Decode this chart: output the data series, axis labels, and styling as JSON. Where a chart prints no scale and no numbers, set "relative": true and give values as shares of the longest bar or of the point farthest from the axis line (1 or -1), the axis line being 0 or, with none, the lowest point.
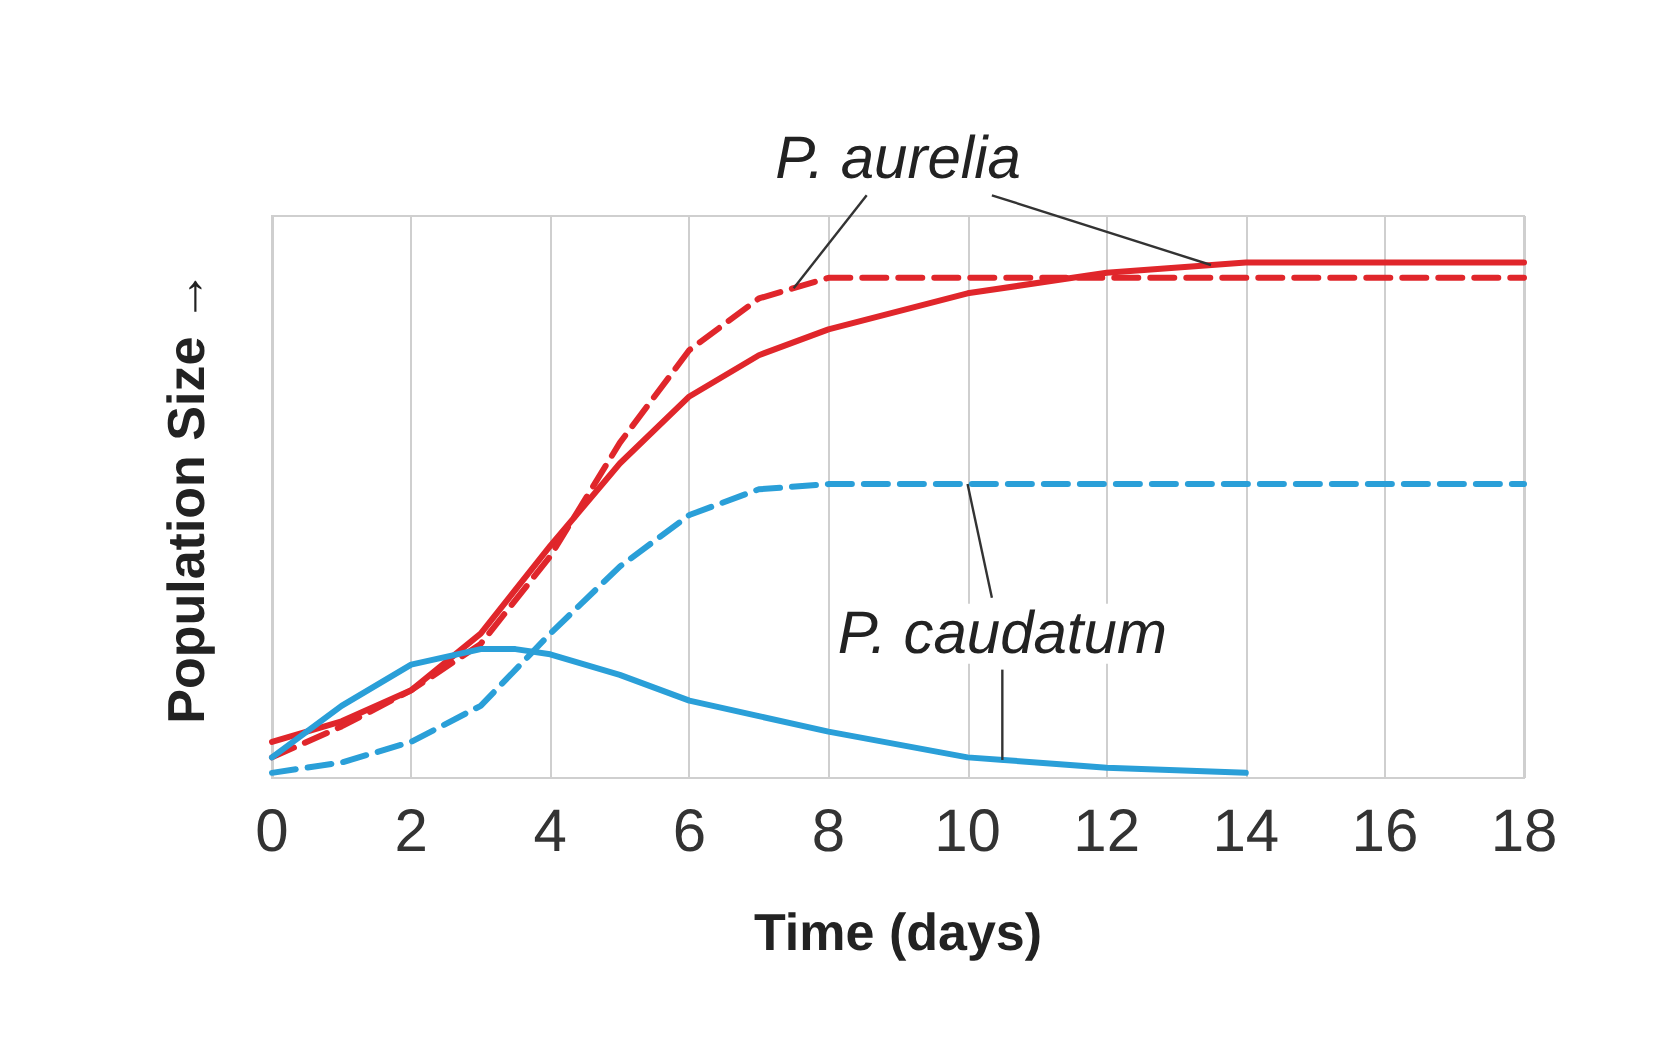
{
  "chart_data": {
    "type": "line",
    "relative": true,
    "xlabel": "Time (days)",
    "ylabel": "Population Size →",
    "xlim": [
      0,
      18
    ],
    "xticks": [
      0,
      2,
      4,
      6,
      8,
      10,
      12,
      14,
      16,
      18
    ],
    "grid": "x",
    "marker": "none",
    "series": [
      {
        "color": "#e0262b",
        "line_style": "solid",
        "x": [
          0,
          1,
          2,
          3,
          4,
          5,
          6,
          7,
          8,
          10,
          12,
          14,
          16,
          18
        ],
        "values": [
          0.07,
          0.11,
          0.17,
          0.28,
          0.45,
          0.61,
          0.74,
          0.82,
          0.87,
          0.94,
          0.98,
          1.0,
          1.0,
          1.0
        ]
      },
      {
        "color": "#e0262b",
        "line_style": "dashed",
        "x": [
          0,
          1,
          2,
          3,
          4,
          5,
          6,
          7,
          8,
          10,
          12,
          14,
          16,
          18
        ],
        "values": [
          0.04,
          0.1,
          0.17,
          0.26,
          0.43,
          0.65,
          0.83,
          0.93,
          0.97,
          0.97,
          0.97,
          0.97,
          0.97,
          0.97
        ]
      },
      {
        "color": "#2a9fd8",
        "line_style": "dashed",
        "x": [
          0,
          1,
          2,
          3,
          4,
          5,
          6,
          7,
          8,
          10,
          12,
          14,
          16,
          18
        ],
        "values": [
          0.01,
          0.03,
          0.07,
          0.14,
          0.28,
          0.41,
          0.51,
          0.56,
          0.57,
          0.57,
          0.57,
          0.57,
          0.57,
          0.57
        ]
      },
      {
        "color": "#2a9fd8",
        "line_style": "solid",
        "x": [
          0,
          1,
          2,
          3,
          3.5,
          4,
          5,
          6,
          7,
          8,
          10,
          12,
          14
        ],
        "values": [
          0.04,
          0.14,
          0.22,
          0.25,
          0.25,
          0.24,
          0.2,
          0.15,
          0.12,
          0.09,
          0.04,
          0.02,
          0.01
        ]
      }
    ],
    "annotations": [
      "P. aurelia",
      "P. caudatum"
    ]
  }
}
